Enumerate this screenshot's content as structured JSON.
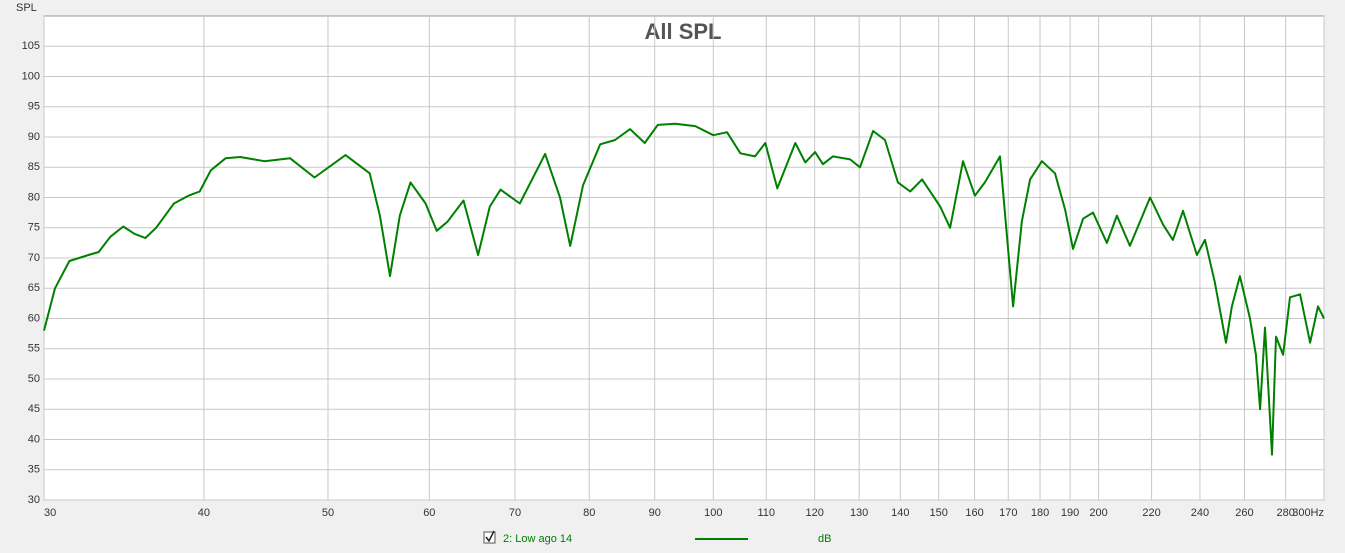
{
  "chart_data": {
    "type": "line",
    "title": "All SPL",
    "ylabel": "SPL",
    "xscale": "log",
    "grid": true,
    "xlim": [
      30,
      300
    ],
    "ylim": [
      30,
      110
    ],
    "xticks": [
      30,
      40,
      50,
      60,
      70,
      80,
      90,
      100,
      110,
      120,
      130,
      140,
      150,
      160,
      170,
      180,
      190,
      200,
      220,
      240,
      260,
      280,
      {
        "value": 300,
        "label": "300Hz"
      }
    ],
    "yticks": [
      30,
      35,
      40,
      45,
      50,
      55,
      60,
      65,
      70,
      75,
      80,
      85,
      90,
      95,
      100,
      105
    ],
    "x": [
      30,
      30.6,
      31.4,
      32.5,
      33.1,
      33.8,
      34.6,
      35.3,
      36.0,
      36.7,
      37.9,
      38.9,
      39.7,
      40.5,
      41.6,
      42.7,
      44.6,
      46.7,
      48.8,
      51.6,
      53.9,
      54.9,
      55.9,
      56.9,
      58.0,
      59.6,
      60.8,
      62.0,
      63.8,
      65.5,
      66.9,
      68.2,
      70.6,
      73.9,
      75.9,
      77.3,
      79.1,
      81.6,
      83.8,
      86.1,
      88.4,
      90.5,
      93.4,
      96.8,
      100,
      102.5,
      105,
      107.8,
      109.8,
      112.2,
      115.9,
      118,
      120.1,
      121.8,
      124,
      127.9,
      130.2,
      133.3,
      136.2,
      139.4,
      142.5,
      145.6,
      150.4,
      153.1,
      156.7,
      160.1,
      163,
      167.5,
      171.5,
      174.2,
      176.8,
      180.6,
      184.9,
      188.3,
      191,
      194.5,
      198,
      203,
      206.7,
      211.6,
      219.4,
      224.6,
      228.6,
      232.8,
      238.7,
      242.2,
      246.5,
      251.5,
      254.2,
      257.9,
      262.6,
      265.4,
      267.4,
      269.8,
      273.2,
      275.2,
      278.7,
      282.2,
      287.4,
      292.6,
      296.8,
      300
    ],
    "series": [
      {
        "name": "2: Low ago 14",
        "unit": "dB",
        "color": "#008000",
        "values": [
          58,
          65,
          69.5,
          70.5,
          71,
          73.5,
          75.2,
          74,
          73.3,
          75,
          79,
          80.3,
          81,
          84.5,
          86.5,
          86.7,
          86,
          86.5,
          83.3,
          87,
          84,
          77,
          67,
          77,
          82.5,
          79,
          74.5,
          76,
          79.5,
          70.5,
          78.5,
          81.3,
          79,
          87.2,
          80,
          72,
          82,
          88.8,
          89.5,
          91.3,
          89,
          92,
          92.2,
          91.8,
          90.3,
          90.8,
          87.3,
          86.8,
          89,
          81.5,
          89,
          85.8,
          87.5,
          85.5,
          86.8,
          86.3,
          85,
          91,
          89.5,
          82.5,
          81,
          83,
          78.5,
          75,
          86,
          80.3,
          82.5,
          86.8,
          62,
          76,
          83,
          86,
          84,
          78,
          71.5,
          76.5,
          77.5,
          72.5,
          77,
          72,
          80,
          75.5,
          73,
          77.8,
          70.5,
          73,
          66,
          56,
          62,
          67,
          60,
          54,
          45,
          58.5,
          37.5,
          57,
          54,
          63.5,
          64,
          56,
          62,
          60
        ]
      }
    ]
  }
}
